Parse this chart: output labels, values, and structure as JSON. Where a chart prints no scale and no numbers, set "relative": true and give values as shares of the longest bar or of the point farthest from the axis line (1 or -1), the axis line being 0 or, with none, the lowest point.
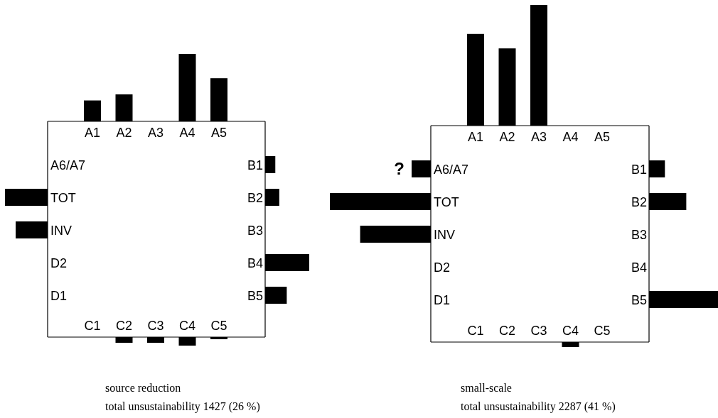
{
  "chart_data": [
    {
      "type": "bar",
      "relative": true,
      "color": "#000000",
      "categories": [
        "A1",
        "A2",
        "A3",
        "A4",
        "A5"
      ],
      "values": [
        0.31,
        0.4,
        0,
        1,
        0.64
      ]
    },
    {
      "type": "bar",
      "relative": true,
      "orientation": "horizontal",
      "color": "#000000",
      "categories": [
        "B1",
        "B2",
        "B3",
        "B4",
        "B5"
      ],
      "values": [
        0.23,
        0.32,
        0,
        1,
        0.49
      ]
    },
    {
      "type": "bar",
      "relative": true,
      "color": "#000000",
      "categories": [
        "C1",
        "C2",
        "C3",
        "C4",
        "C5"
      ],
      "values": [
        0,
        -0.67,
        -0.67,
        -1,
        -0.25
      ],
      "title": "source reduction",
      "subtitle": "total unsustainability 1427 (26 %)"
    },
    {
      "type": "bar",
      "relative": true,
      "orientation": "horizontal",
      "color": "#000000",
      "categories": [
        "A6/A7",
        "TOT",
        "INV",
        "D2",
        "D1"
      ],
      "values": [
        0,
        -1,
        -0.75,
        0,
        0
      ]
    },
    {
      "type": "bar",
      "relative": true,
      "color": "#000000",
      "categories": [
        "A1",
        "A2",
        "A3",
        "A4",
        "A5"
      ],
      "values": [
        0.76,
        0.64,
        1,
        0,
        0
      ]
    },
    {
      "type": "bar",
      "relative": true,
      "orientation": "horizontal",
      "color": "#000000",
      "categories": [
        "B1",
        "B2",
        "B3",
        "B4",
        "B5"
      ],
      "values": [
        0.23,
        0.54,
        0,
        0,
        1
      ]
    },
    {
      "type": "bar",
      "relative": true,
      "color": "#000000",
      "categories": [
        "C1",
        "C2",
        "C3",
        "C4",
        "C5"
      ],
      "values": [
        0,
        0,
        0,
        -1,
        0
      ],
      "title": "small-scale",
      "subtitle": "total unsustainability 2287 (41 %)"
    },
    {
      "type": "bar",
      "relative": true,
      "orientation": "horizontal",
      "color": "#000000",
      "categories": [
        "A6/A7",
        "TOT",
        "INV",
        "D2",
        "D1"
      ],
      "values": [
        -0.19,
        -1,
        -0.7,
        0,
        0
      ],
      "annotations": [
        "?"
      ]
    }
  ]
}
